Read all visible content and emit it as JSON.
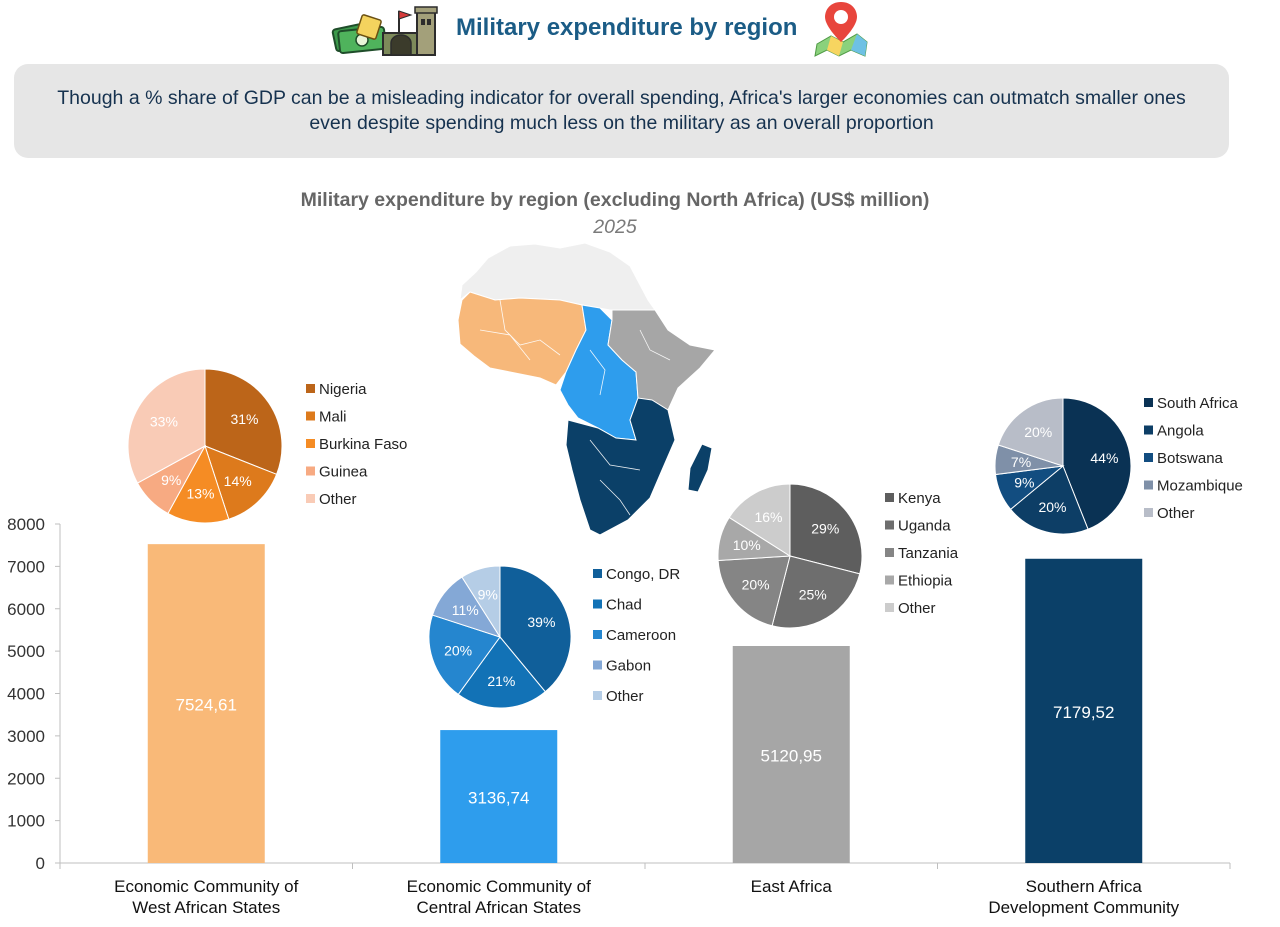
{
  "header": {
    "title": "Military expenditure by region",
    "left_icon": "money-military-icon",
    "right_icon": "map-pin-icon"
  },
  "subtitle": "Though a % share of GDP can be a misleading indicator for overall spending, Africa's larger economies can outmatch smaller ones even despite spending much less on the military as an overall proportion",
  "chart_data": [
    {
      "type": "bar",
      "title": "Military expenditure by region (excluding North Africa) (US$ million)",
      "subtitle": "2025",
      "categories": [
        "Economic Community of West African States",
        "Economic Community of Central African States",
        "East Africa",
        "Southern Africa Development Community"
      ],
      "values": [
        7524.61,
        3136.74,
        5120.95,
        7179.52
      ],
      "value_labels": [
        "7524,61",
        "3136,74",
        "5120,95",
        "7179,52"
      ],
      "colors": [
        "#f9b978",
        "#2e9ded",
        "#a6a6a6",
        "#0b4068"
      ],
      "ylim": [
        0,
        8000
      ],
      "yticks": [
        0,
        1000,
        2000,
        3000,
        4000,
        5000,
        6000,
        7000,
        8000
      ],
      "grid": false
    },
    {
      "type": "pie",
      "region": "Economic Community of West African States",
      "labels": [
        "Nigeria",
        "Mali",
        "Burkina Faso",
        "Guinea",
        "Other"
      ],
      "values": [
        31,
        14,
        13,
        9,
        33
      ],
      "colors": [
        "#bc6519",
        "#dd7a1c",
        "#f58c24",
        "#f7aa82",
        "#f9cbb6"
      ],
      "legend": "right"
    },
    {
      "type": "pie",
      "region": "Economic Community of Central African States",
      "labels": [
        "Congo, DR",
        "Chad",
        "Cameroon",
        "Gabon",
        "Other"
      ],
      "values": [
        39,
        21,
        20,
        11,
        9
      ],
      "colors": [
        "#105f9a",
        "#1272b6",
        "#2586cf",
        "#84a8d6",
        "#b5cde6"
      ],
      "legend": "right"
    },
    {
      "type": "pie",
      "region": "East Africa",
      "labels": [
        "Kenya",
        "Uganda",
        "Tanzania",
        "Ethiopia",
        "Other"
      ],
      "values": [
        29,
        25,
        20,
        10,
        16
      ],
      "colors": [
        "#5e5e5e",
        "#6e6e6e",
        "#858585",
        "#a8a8a8",
        "#cccccc"
      ],
      "legend": "right"
    },
    {
      "type": "pie",
      "region": "Southern Africa Development Community",
      "labels": [
        "South Africa",
        "Angola",
        "Botswana",
        "Mozambique",
        "Other"
      ],
      "values": [
        44,
        20,
        9,
        7,
        20
      ],
      "colors": [
        "#0a3254",
        "#0d3e66",
        "#124d80",
        "#7f90a8",
        "#b8bdc8"
      ],
      "legend": "right"
    }
  ],
  "map": {
    "icon": "africa-region-map",
    "region_colors": {
      "north": "#efefef",
      "west": "#f7b87a",
      "central": "#2e9ded",
      "east": "#a6a6a6",
      "south": "#0b4068"
    }
  }
}
